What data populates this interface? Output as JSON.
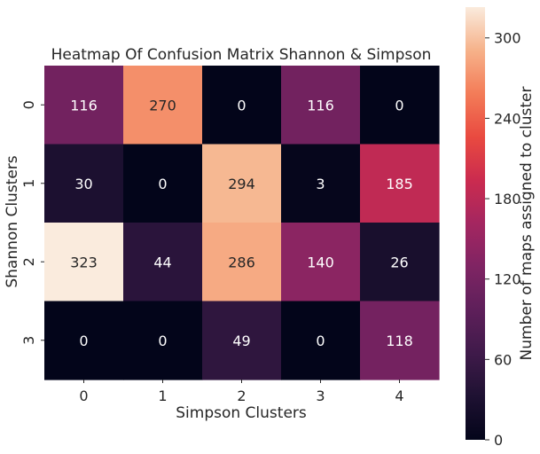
{
  "chart_data": {
    "type": "heatmap",
    "title": "Heatmap Of Confusion Matrix Shannon & Simpson",
    "xlabel": "Simpson Clusters",
    "ylabel": "Shannon Clusters",
    "x_categories": [
      "0",
      "1",
      "2",
      "3",
      "4"
    ],
    "y_categories": [
      "0",
      "1",
      "2",
      "3"
    ],
    "values": [
      [
        116,
        270,
        0,
        116,
        0
      ],
      [
        30,
        0,
        294,
        3,
        185
      ],
      [
        323,
        44,
        286,
        140,
        26
      ],
      [
        0,
        0,
        49,
        0,
        118
      ]
    ],
    "colorbar": {
      "label": "Number of maps assigned to cluster",
      "ticks": [
        0,
        60,
        120,
        180,
        240,
        300
      ],
      "range": [
        0,
        323
      ]
    },
    "colormap": "rocket",
    "grid": false
  }
}
